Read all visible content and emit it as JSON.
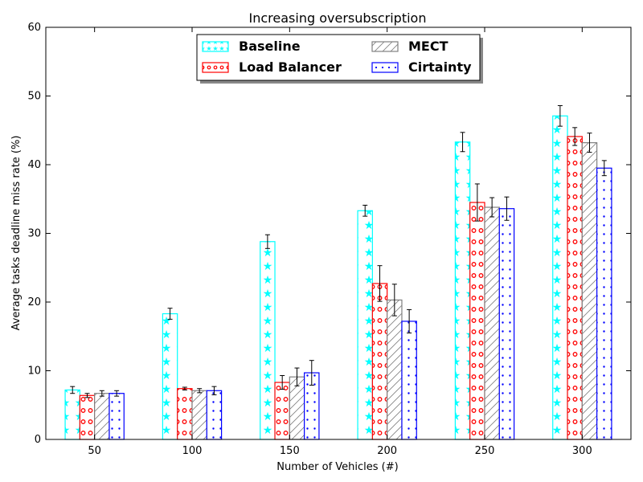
{
  "chart_data": {
    "type": "bar",
    "title": "Increasing oversubscription",
    "xlabel": "Number of Vehicles (#)",
    "ylabel": "Average tasks deadline miss rate (%)",
    "categories": [
      "50",
      "100",
      "150",
      "200",
      "250",
      "300"
    ],
    "ylim": [
      0,
      60
    ],
    "yticks": [
      0,
      10,
      20,
      30,
      40,
      50,
      60
    ],
    "grid": false,
    "legend_position": "top-center",
    "series": [
      {
        "name": "Baseline",
        "color": "#00ffff",
        "pattern": "stars",
        "values": [
          7.2,
          18.3,
          28.8,
          33.3,
          43.3,
          47.1
        ],
        "errors": [
          0.5,
          0.8,
          1.0,
          0.8,
          1.4,
          1.5
        ]
      },
      {
        "name": "Load Balancer",
        "color": "#ff0000",
        "pattern": "circles",
        "values": [
          6.4,
          7.4,
          8.3,
          22.7,
          34.5,
          44.1
        ],
        "errors": [
          0.3,
          0.2,
          1.0,
          2.6,
          2.7,
          1.3
        ]
      },
      {
        "name": "MECT",
        "color": "#808080",
        "pattern": "hatch",
        "values": [
          6.7,
          7.1,
          9.1,
          20.3,
          33.8,
          43.2
        ],
        "errors": [
          0.4,
          0.3,
          1.3,
          2.3,
          1.4,
          1.4
        ]
      },
      {
        "name": "Cirtainty",
        "color": "#0000ff",
        "pattern": "dots",
        "values": [
          6.7,
          7.1,
          9.7,
          17.2,
          33.6,
          39.5
        ],
        "errors": [
          0.4,
          0.6,
          1.8,
          1.7,
          1.7,
          1.1
        ]
      }
    ]
  }
}
